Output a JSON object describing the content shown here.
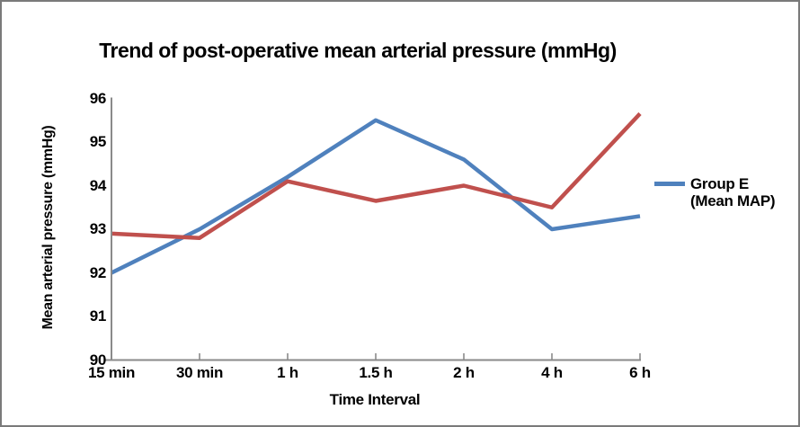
{
  "title": "Trend of post-operative mean arterial pressure (mmHg)",
  "legend": {
    "line1": "Group E",
    "line2": "(Mean MAP)",
    "swatch_color": "#4F81BD"
  },
  "colors": {
    "axis": "#8a8a8a",
    "frame": "#7a7a7a",
    "blue_series": "#4F81BD",
    "red_series": "#C0504D",
    "text": "#000000"
  },
  "chart_data": {
    "type": "line",
    "title": "Trend of post-operative mean arterial pressure (mmHg)",
    "xlabel": "Time Interval",
    "ylabel": "Mean arterial pressure (mmHg)",
    "categories": [
      "15 min",
      "30 min",
      "1 h",
      "1.5 h",
      "2 h",
      "4 h",
      "6 h"
    ],
    "yticks": [
      90,
      91,
      92,
      93,
      94,
      95,
      96
    ],
    "ylim": [
      90,
      96
    ],
    "grid": false,
    "legend_position": "right",
    "series": [
      {
        "name": "Group E (Mean MAP)",
        "color": "#4F81BD",
        "values": [
          92.0,
          93.0,
          94.2,
          95.5,
          94.6,
          93.0,
          93.3
        ]
      },
      {
        "name": "",
        "color": "#C0504D",
        "values": [
          92.9,
          92.8,
          94.1,
          93.65,
          94.0,
          93.5,
          95.65
        ]
      }
    ]
  }
}
